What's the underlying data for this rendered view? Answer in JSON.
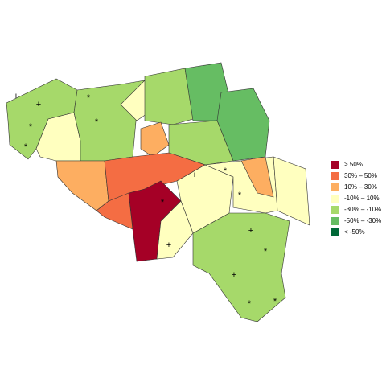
{
  "legend": [
    {
      "label": "> 50%",
      "color": "#a50026"
    },
    {
      "label": "30% – 50%",
      "color": "#f46d43"
    },
    {
      "label": "10% – 30%",
      "color": "#fdae61"
    },
    {
      "label": "-10% – 10%",
      "color": "#ffffbf"
    },
    {
      "label": "-30% – -10%",
      "color": "#a6d96a"
    },
    {
      "label": "-50% – -30%",
      "color": "#66bd63"
    },
    {
      "label": "< -50%",
      "color": "#006837"
    }
  ],
  "symbols": [
    "+",
    "+",
    "*",
    "*",
    "*",
    "*",
    "*",
    "+",
    "+",
    "+",
    "+",
    "*",
    "*",
    "*",
    "*",
    "*"
  ]
}
